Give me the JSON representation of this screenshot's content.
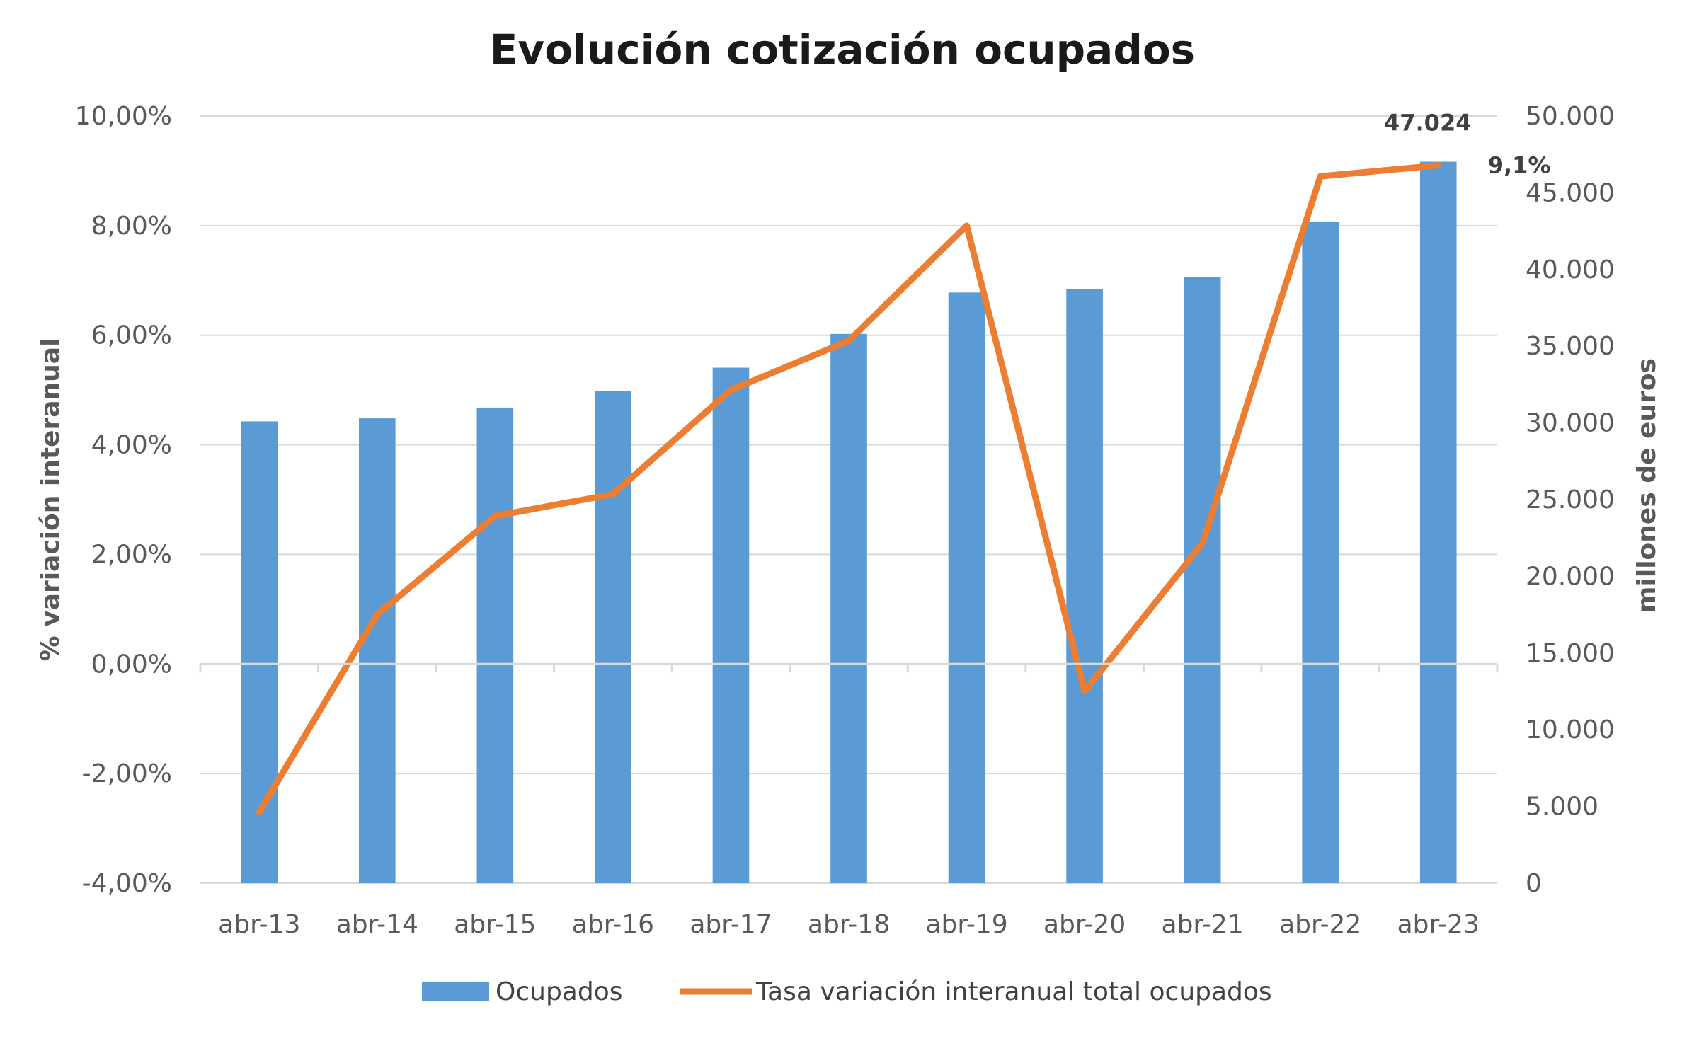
{
  "chart_data": {
    "type": "bar",
    "title": "Evolución cotización ocupados",
    "categories": [
      "abr-13",
      "abr-14",
      "abr-15",
      "abr-16",
      "abr-17",
      "abr-18",
      "abr-19",
      "abr-20",
      "abr-21",
      "abr-22",
      "abr-23"
    ],
    "series": [
      {
        "name": "Ocupados",
        "type": "bar",
        "axis": "right",
        "color": "#5b9bd5",
        "values": [
          30100,
          30300,
          31000,
          32100,
          33600,
          35800,
          38500,
          38700,
          39500,
          43100,
          47024
        ]
      },
      {
        "name": "Tasa variación interanual total ocupados",
        "type": "line",
        "axis": "left",
        "color": "#ed7d31",
        "values": [
          -2.7,
          0.9,
          2.7,
          3.1,
          5.0,
          5.9,
          8.0,
          -0.5,
          2.2,
          8.9,
          9.1
        ]
      }
    ],
    "y_left": {
      "label": "% variación interanual",
      "range": [
        -4,
        10
      ],
      "ticks": [
        "-4,00%",
        "-2,00%",
        "0,00%",
        "2,00%",
        "4,00%",
        "6,00%",
        "8,00%",
        "10,00%"
      ]
    },
    "y_right": {
      "label": "millones de euros",
      "range": [
        0,
        50000
      ],
      "ticks": [
        "0",
        "5.000",
        "10.000",
        "15.000",
        "20.000",
        "25.000",
        "30.000",
        "35.000",
        "40.000",
        "45.000",
        "50.000"
      ]
    },
    "annotations": [
      {
        "text": "47.024",
        "target": "Ocupados",
        "index": 10
      },
      {
        "text": "9,1%",
        "target": "Tasa variación interanual total ocupados",
        "index": 10
      }
    ],
    "grid": true,
    "legend": "bottom"
  }
}
